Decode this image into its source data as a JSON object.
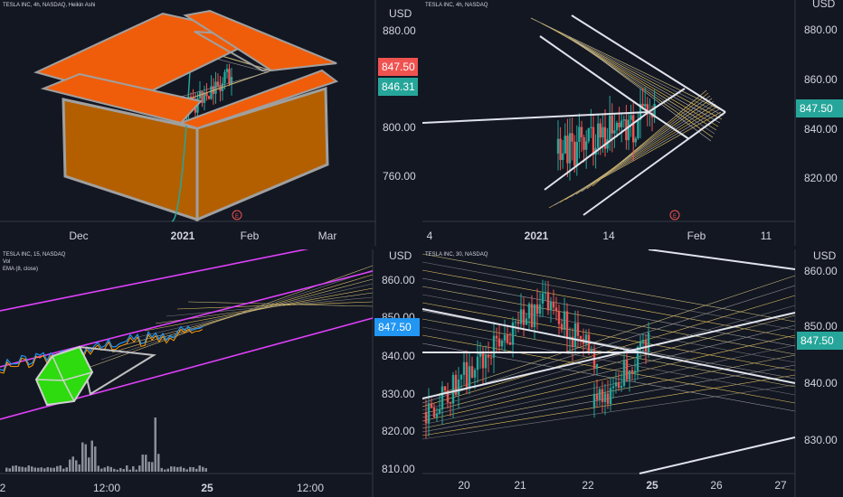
{
  "colors": {
    "background": "#131722",
    "grid": "#1e222d",
    "axis_text": "#d1d4dc",
    "candle_up": "#26a69a",
    "candle_down": "#ef5350",
    "box_orange": "#ef5d0a",
    "box_brown": "#b35f00",
    "magenta": "#e040fb",
    "green_cube": "#2ddb0f",
    "blue_ema": "#2196f3",
    "orange_ema": "#ff9800",
    "price_tag_red": "#ef5350",
    "price_tag_green": "#26a69a",
    "price_tag_blue": "#2196f3"
  },
  "panels": {
    "top_left": {
      "legend": "TESLA INC, 4h, NASDAQ, Heikin Ashi",
      "currency": "USD",
      "price_labels": [
        "880.00",
        "800.00",
        "760.00"
      ],
      "tag_last": "847.50",
      "tag_ha": "846.31",
      "x_labels": [
        "Dec",
        "2021",
        "Feb",
        "Mar"
      ],
      "event_marker": "E"
    },
    "top_right": {
      "legend": "TESLA INC, 4h, NASDAQ",
      "currency": "USD",
      "price_labels": [
        "880.00",
        "860.00",
        "840.00",
        "820.00"
      ],
      "tag_last": "847.50",
      "x_labels": [
        "4",
        "2021",
        "14",
        "Feb",
        "11"
      ],
      "event_marker": "E"
    },
    "bottom_left": {
      "legend": "TESLA INC, 15, NASDAQ",
      "legend_vol": "Vol",
      "legend_ema": "EMA (8, close)",
      "currency": "USD",
      "price_labels": [
        "860.00",
        "850.00",
        "840.00",
        "830.00",
        "820.00",
        "810.00"
      ],
      "tag_last": "847.50",
      "x_labels": [
        "2",
        "12:00",
        "25",
        "12:00"
      ]
    },
    "bottom_right": {
      "legend": "TESLA INC, 30, NASDAQ",
      "currency": "USD",
      "price_labels": [
        "860.00",
        "850.00",
        "840.00",
        "830.00"
      ],
      "tag_last": "847.50",
      "x_labels": [
        "20",
        "21",
        "22",
        "25",
        "26",
        "27"
      ]
    }
  },
  "chart_data": [
    {
      "type": "candlestick",
      "title": "TESLA INC, 4h, NASDAQ, Heikin Ashi",
      "y_axis_labels": [
        "880.00",
        "800.00",
        "760.00"
      ],
      "x_axis_labels": [
        "Dec",
        "2021",
        "Feb",
        "Mar"
      ],
      "ylim": [
        724,
        896
      ],
      "last_price": 847.5,
      "ha_close": 846.31,
      "annotation": "orange box drawing around price action"
    },
    {
      "type": "candlestick",
      "title": "TESLA INC, 4h, NASDAQ",
      "y_axis_labels": [
        "880.00",
        "860.00",
        "840.00",
        "820.00"
      ],
      "x_axis_labels": [
        "4",
        "2021",
        "14",
        "Feb",
        "11"
      ],
      "ylim": [
        806,
        888
      ],
      "last_price": 847.5,
      "annotation": "converging triangle with fan lines"
    },
    {
      "type": "candlestick",
      "title": "TESLA INC, 15, NASDAQ",
      "indicators": [
        "Vol",
        "EMA (8, close)"
      ],
      "y_axis_labels": [
        "860.00",
        "850.00",
        "840.00",
        "830.00",
        "820.00",
        "810.00"
      ],
      "x_axis_labels": [
        "2",
        "12:00",
        "25",
        "12:00"
      ],
      "ylim": [
        808,
        866
      ],
      "last_price": 847.5,
      "annotation": "magenta parallel channel, green cube drawing"
    },
    {
      "type": "candlestick",
      "title": "TESLA INC, 30, NASDAQ",
      "y_axis_labels": [
        "860.00",
        "850.00",
        "840.00",
        "830.00"
      ],
      "x_axis_labels": [
        "20",
        "21",
        "22",
        "25",
        "26",
        "27"
      ],
      "ylim": [
        818,
        864
      ],
      "last_price": 847.5,
      "annotation": "crossing trendlines with parallel fan lines"
    }
  ]
}
